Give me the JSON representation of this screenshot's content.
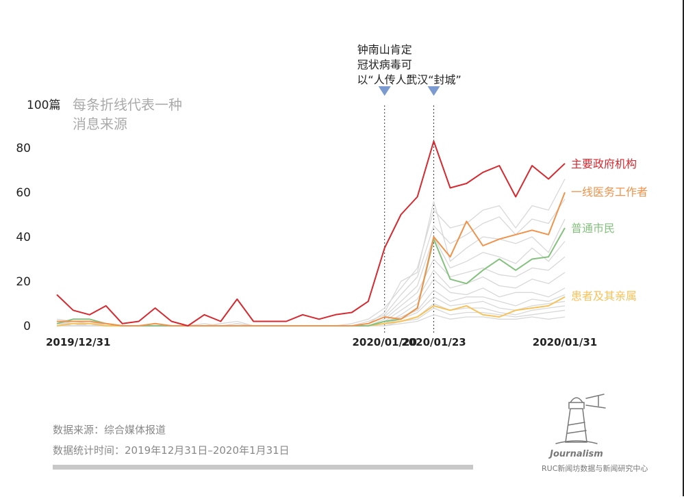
{
  "chart_data": {
    "type": "line",
    "x": [
      "2019/12/31",
      "2020/01/01",
      "2020/01/02",
      "2020/01/03",
      "2020/01/04",
      "2020/01/05",
      "2020/01/06",
      "2020/01/07",
      "2020/01/08",
      "2020/01/09",
      "2020/01/10",
      "2020/01/11",
      "2020/01/12",
      "2020/01/13",
      "2020/01/14",
      "2020/01/15",
      "2020/01/16",
      "2020/01/17",
      "2020/01/18",
      "2020/01/19",
      "2020/01/20",
      "2020/01/21",
      "2020/01/22",
      "2020/01/23",
      "2020/01/24",
      "2020/01/25",
      "2020/01/26",
      "2020/01/27",
      "2020/01/28",
      "2020/01/29",
      "2020/01/30",
      "2020/01/31"
    ],
    "x_tick_labels": [
      "2019/12/31",
      "2020/01/20",
      "2020/01/23",
      "2020/01/31"
    ],
    "y_ticks": [
      "0",
      "20",
      "40",
      "60",
      "80"
    ],
    "y_top_label": "100篇",
    "subtitle": "每条折线代表一种\n消息来源",
    "ylim": [
      0,
      100
    ],
    "grid": false,
    "series": [
      {
        "name": "主要政府机构",
        "color": "#d7282f",
        "values": [
          14,
          7,
          5,
          9,
          1,
          2,
          8,
          2,
          0,
          5,
          2,
          12,
          2,
          2,
          2,
          5,
          3,
          5,
          6,
          11,
          35,
          50,
          58,
          83,
          62,
          64,
          69,
          72,
          58,
          72,
          66,
          73
        ]
      },
      {
        "name": "一线医务工作者",
        "color": "#f0924a",
        "values": [
          2,
          2,
          2,
          1,
          0,
          0,
          1,
          0,
          0,
          0,
          0,
          0,
          0,
          0,
          0,
          0,
          0,
          0,
          0,
          1,
          4,
          3,
          8,
          40,
          31,
          47,
          36,
          39,
          41,
          43,
          41,
          60
        ]
      },
      {
        "name": "普通市民",
        "color": "#85c17e",
        "values": [
          1,
          3,
          3,
          1,
          0,
          0,
          0,
          0,
          0,
          0,
          0,
          0,
          0,
          0,
          0,
          0,
          0,
          0,
          0,
          0,
          2,
          3,
          8,
          39,
          21,
          19,
          25,
          30,
          25,
          30,
          31,
          44
        ]
      },
      {
        "name": "患者及其亲属",
        "color": "#f7c25a",
        "values": [
          0,
          1,
          1,
          0,
          0,
          0,
          0,
          0,
          0,
          0,
          0,
          0,
          0,
          0,
          0,
          0,
          0,
          0,
          0,
          0,
          1,
          2,
          4,
          9,
          7,
          9,
          5,
          4,
          7,
          8,
          9,
          13
        ]
      },
      {
        "name": "",
        "color": "#d8d8d8",
        "values": [
          3,
          2,
          1,
          1,
          0,
          0,
          1,
          0,
          0,
          0,
          1,
          2,
          0,
          0,
          0,
          0,
          0,
          0,
          1,
          3,
          8,
          17,
          26,
          52,
          44,
          46,
          52,
          54,
          44,
          54,
          52,
          66
        ]
      },
      {
        "name": "",
        "color": "#d8d8d8",
        "values": [
          1,
          2,
          2,
          0,
          0,
          0,
          0,
          0,
          0,
          0,
          0,
          1,
          0,
          0,
          0,
          0,
          0,
          0,
          0,
          2,
          5,
          14,
          22,
          45,
          37,
          41,
          46,
          49,
          41,
          48,
          46,
          57
        ]
      },
      {
        "name": "",
        "color": "#d8d8d8",
        "values": [
          2,
          1,
          0,
          1,
          0,
          0,
          1,
          0,
          0,
          0,
          0,
          0,
          0,
          0,
          0,
          0,
          0,
          0,
          0,
          1,
          6,
          20,
          24,
          56,
          29,
          35,
          40,
          39,
          37,
          40,
          33,
          48
        ]
      },
      {
        "name": "",
        "color": "#d8d8d8",
        "values": [
          0,
          1,
          1,
          0,
          0,
          0,
          0,
          0,
          0,
          1,
          0,
          0,
          0,
          0,
          0,
          0,
          0,
          0,
          0,
          1,
          4,
          11,
          18,
          40,
          26,
          29,
          33,
          31,
          28,
          35,
          29,
          38
        ]
      },
      {
        "name": "",
        "color": "#d8d8d8",
        "values": [
          1,
          0,
          1,
          0,
          0,
          0,
          0,
          0,
          0,
          0,
          0,
          1,
          0,
          0,
          0,
          0,
          0,
          0,
          0,
          0,
          3,
          9,
          15,
          30,
          22,
          24,
          26,
          23,
          22,
          26,
          25,
          31
        ]
      },
      {
        "name": "",
        "color": "#d8d8d8",
        "values": [
          0,
          0,
          0,
          0,
          0,
          0,
          0,
          0,
          0,
          0,
          0,
          0,
          0,
          0,
          0,
          0,
          0,
          0,
          0,
          0,
          2,
          7,
          12,
          25,
          17,
          19,
          22,
          18,
          17,
          21,
          19,
          24
        ]
      },
      {
        "name": "",
        "color": "#d8d8d8",
        "values": [
          1,
          1,
          0,
          0,
          0,
          0,
          0,
          0,
          0,
          0,
          0,
          0,
          0,
          0,
          0,
          0,
          0,
          0,
          0,
          0,
          1,
          5,
          10,
          21,
          15,
          14,
          17,
          13,
          15,
          15,
          13,
          17
        ]
      },
      {
        "name": "",
        "color": "#d8d8d8",
        "values": [
          0,
          0,
          1,
          0,
          0,
          0,
          0,
          0,
          0,
          0,
          0,
          0,
          0,
          0,
          0,
          0,
          0,
          0,
          0,
          0,
          2,
          4,
          7,
          16,
          11,
          13,
          13,
          11,
          9,
          12,
          11,
          14
        ]
      },
      {
        "name": "",
        "color": "#d8d8d8",
        "values": [
          0,
          0,
          0,
          0,
          0,
          0,
          0,
          0,
          0,
          0,
          0,
          0,
          0,
          0,
          0,
          0,
          0,
          0,
          0,
          0,
          1,
          3,
          6,
          13,
          9,
          10,
          11,
          8,
          7,
          9,
          10,
          11
        ]
      },
      {
        "name": "",
        "color": "#d8d8d8",
        "values": [
          0,
          0,
          0,
          0,
          0,
          0,
          0,
          0,
          0,
          0,
          0,
          0,
          0,
          0,
          0,
          0,
          0,
          0,
          0,
          0,
          1,
          2,
          4,
          10,
          7,
          8,
          8,
          6,
          5,
          7,
          8,
          9
        ]
      },
      {
        "name": "",
        "color": "#d8d8d8",
        "values": [
          0,
          0,
          0,
          0,
          0,
          0,
          0,
          0,
          0,
          0,
          0,
          0,
          0,
          0,
          0,
          0,
          0,
          0,
          0,
          0,
          0,
          2,
          3,
          8,
          5,
          6,
          6,
          5,
          4,
          5,
          6,
          7
        ]
      },
      {
        "name": "",
        "color": "#d8d8d8",
        "values": [
          0,
          0,
          0,
          0,
          0,
          0,
          0,
          0,
          0,
          0,
          0,
          0,
          0,
          0,
          0,
          0,
          0,
          0,
          0,
          0,
          0,
          1,
          2,
          5,
          3,
          4,
          4,
          3,
          3,
          4,
          3,
          4
        ]
      }
    ],
    "events": [
      {
        "date": "2020/01/20",
        "label": "钟南山肯定\n冠状病毒可\n以“人传人”"
      },
      {
        "date": "2020/01/23",
        "label": "武汉“封城”"
      }
    ]
  },
  "footer": {
    "source": "数据来源：综合媒体报道",
    "period": "数据统计时间：2019年12月31日–2020年1月31日",
    "brand_script": "Journalism",
    "brand_org": "RUC新闻坊数据与新闻研究中心"
  },
  "colors": {
    "axis_text": "#222222",
    "subtitle": "#aaaaaa",
    "event_marker": "#7b9bd0",
    "footer_text": "#888888",
    "footer_bar": "#c8c8c8",
    "brand": "#777777"
  }
}
